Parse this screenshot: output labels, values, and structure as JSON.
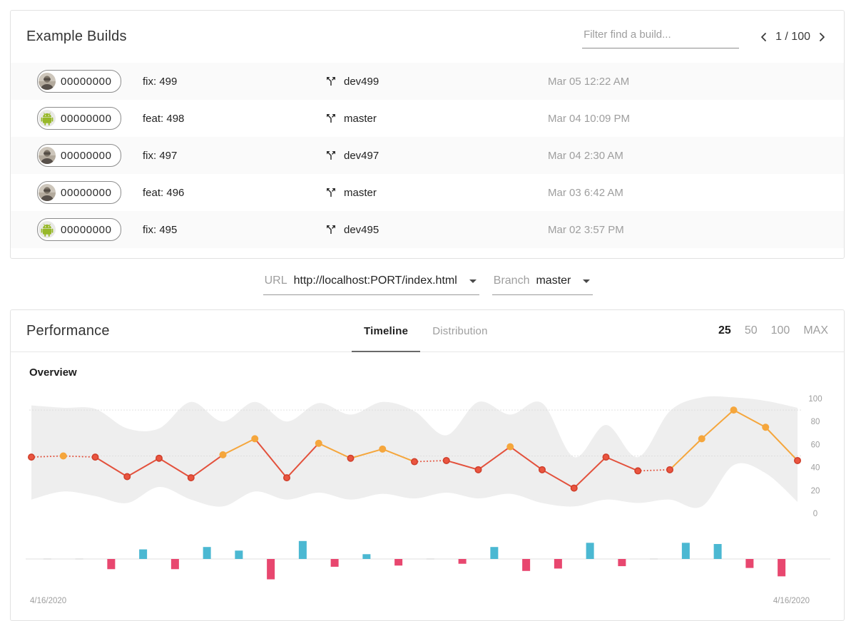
{
  "builds_card": {
    "title": "Example Builds",
    "filter": {
      "placeholder": "Filter find a build..."
    },
    "pagination": {
      "label": "1 / 100"
    },
    "rows": [
      {
        "avatar": "person",
        "hash": "00000000",
        "message": "fix: 499",
        "branch": "dev499",
        "time": "Mar 05 12:22 AM"
      },
      {
        "avatar": "android",
        "hash": "00000000",
        "message": "feat: 498",
        "branch": "master",
        "time": "Mar 04 10:09 PM"
      },
      {
        "avatar": "person",
        "hash": "00000000",
        "message": "fix: 497",
        "branch": "dev497",
        "time": "Mar 04 2:30 AM"
      },
      {
        "avatar": "person",
        "hash": "00000000",
        "message": "feat: 496",
        "branch": "master",
        "time": "Mar 03 6:42 AM"
      },
      {
        "avatar": "android",
        "hash": "00000000",
        "message": "fix: 495",
        "branch": "dev495",
        "time": "Mar 02 3:57 PM"
      }
    ],
    "icons": {
      "branch": "call-split",
      "prev": "chevron-left",
      "next": "chevron-right"
    }
  },
  "selectors": {
    "url": {
      "label": "URL",
      "value": "http://localhost:PORT/index.html"
    },
    "branch": {
      "label": "Branch",
      "value": "master"
    }
  },
  "performance_card": {
    "title": "Performance",
    "tabs": [
      {
        "label": "Timeline",
        "active": true
      },
      {
        "label": "Distribution",
        "active": false
      }
    ],
    "ranges": [
      {
        "label": "25",
        "active": true
      },
      {
        "label": "50",
        "active": false
      },
      {
        "label": "100",
        "active": false
      },
      {
        "label": "MAX",
        "active": false
      }
    ],
    "section_label": "Overview"
  },
  "chart_data": {
    "type": "line",
    "title": "Overview",
    "x_start_label": "4/16/2020",
    "x_end_label": "4/16/2020",
    "y_ticks": [
      0,
      20,
      40,
      60,
      80,
      100
    ],
    "ylim": [
      0,
      100
    ],
    "gridlines": [
      50,
      90
    ],
    "legend": "none",
    "series": [
      {
        "name": "score-line",
        "type": "line",
        "values": [
          49,
          50,
          49,
          32,
          48,
          31,
          51,
          65,
          31,
          61,
          48,
          56,
          45,
          46,
          38,
          58,
          38,
          22,
          49,
          37,
          38,
          65,
          90,
          75,
          46
        ]
      },
      {
        "name": "range-band",
        "type": "area",
        "upper": [
          94,
          92,
          91,
          74,
          74,
          97,
          80,
          97,
          80,
          96,
          86,
          97,
          89,
          68,
          97,
          86,
          96,
          49,
          77,
          49,
          89,
          101,
          101,
          98,
          92
        ],
        "lower": [
          12,
          19,
          15,
          9,
          23,
          12,
          6,
          19,
          12,
          18,
          12,
          17,
          13,
          18,
          13,
          17,
          9,
          6,
          12,
          9,
          12,
          6,
          42,
          35,
          10
        ]
      },
      {
        "name": "delta-bars",
        "type": "bar",
        "values": [
          1,
          -1,
          -17,
          16,
          -17,
          20,
          14,
          -34,
          30,
          -13,
          8,
          -11,
          1,
          -8,
          20,
          -20,
          -16,
          27,
          -12,
          1,
          27,
          25,
          -15,
          -29
        ]
      }
    ],
    "colors": {
      "line_low": "#e3513c",
      "line_high": "#f5a63c",
      "point_low": "#ea5540",
      "point_low_ring": "#d0402c",
      "point_high": "#f5a63c",
      "band": "#eeeeee",
      "bar_up": "#4bb8d2",
      "bar_down": "#e8476f",
      "gridline": "#d9d9d9",
      "baseline": "#f0f0f0",
      "axis_text": "#9e9e9e"
    },
    "threshold": 50
  }
}
